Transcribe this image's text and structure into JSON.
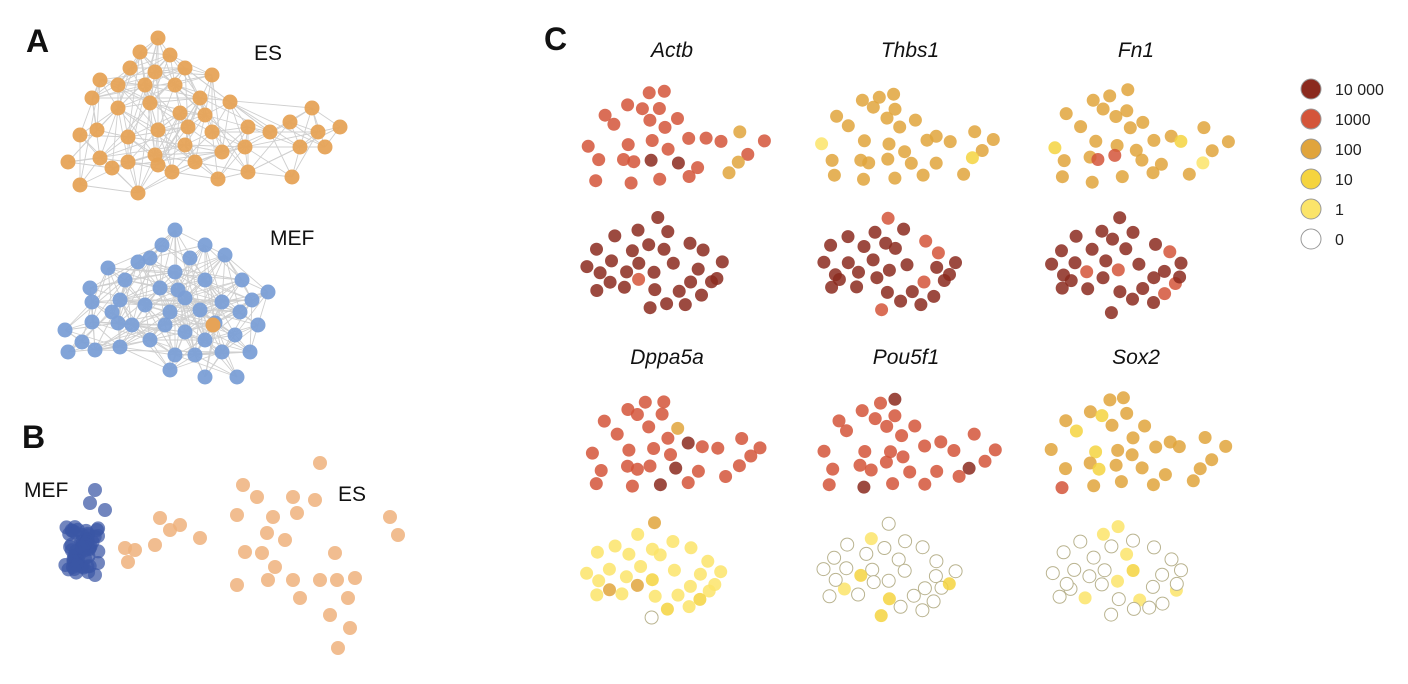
{
  "panel_a": {
    "letter": "A",
    "es_label": "ES",
    "mef_label": "MEF",
    "es_color": "#e6a357",
    "mef_color": "#7b9fd6",
    "edge_color": "#cfcfcf"
  },
  "panel_b": {
    "letter": "B",
    "mef_label": "MEF",
    "es_label": "ES",
    "mef_color": "#3a56a5",
    "es_color": "#eeb27c"
  },
  "panel_c": {
    "letter": "C",
    "genes": [
      {
        "name": "Actb",
        "es_level": "1000",
        "mef_level": "10000"
      },
      {
        "name": "Thbs1",
        "es_level": "100",
        "mef_level": "10000"
      },
      {
        "name": "Fn1",
        "es_level": "100",
        "mef_level": "10000"
      },
      {
        "name": "Dppa5a",
        "es_level": "1000",
        "mef_level": "1"
      },
      {
        "name": "Pou5f1",
        "es_level": "1000",
        "mef_level": "0"
      },
      {
        "name": "Sox2",
        "es_level": "100",
        "mef_level": "0"
      }
    ],
    "legend": [
      {
        "label": "10 000",
        "color": "#8b2a1e"
      },
      {
        "label": "1000",
        "color": "#d4553a"
      },
      {
        "label": "100",
        "color": "#e0a43c"
      },
      {
        "label": "10",
        "color": "#f5d43f"
      },
      {
        "label": "1",
        "color": "#fbe46a"
      },
      {
        "label": "0",
        "color": "#ffffff"
      }
    ]
  }
}
